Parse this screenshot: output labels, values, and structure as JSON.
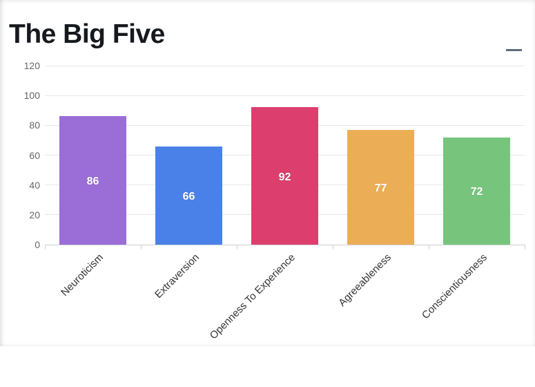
{
  "page": {
    "title": "The Big Five"
  },
  "toolbar": {
    "menu_icon": "hamburger-menu-icon"
  },
  "chart_data": {
    "type": "bar",
    "title": "The Big Five",
    "categories": [
      "Neuroticism",
      "Extraversion",
      "Openness To Experience",
      "Agreeableness",
      "Conscientiousness"
    ],
    "values": [
      86,
      66,
      92,
      77,
      72
    ],
    "data_labels": [
      "86",
      "66",
      "92",
      "77",
      "72"
    ],
    "xlabel": "",
    "ylabel": "",
    "ylim": [
      0,
      120
    ],
    "yticks": [
      0,
      20,
      40,
      60,
      80,
      100,
      120
    ],
    "grid": true,
    "legend": "none",
    "bar_colors": [
      "#9a6dd7",
      "#4a81e8",
      "#dc3f6e",
      "#ebae57",
      "#77c57d"
    ],
    "colors": {
      "gridline": "#e7e7e7",
      "axis_line": "#ccd0d6",
      "y_tick_label": "#666666",
      "x_tick_label": "#333333",
      "value_label": "#ffffff",
      "title_text": "#16191e",
      "menu_icon": "#5d6b79"
    },
    "x_label_rotation": -45,
    "value_label_position": "inside-center"
  }
}
